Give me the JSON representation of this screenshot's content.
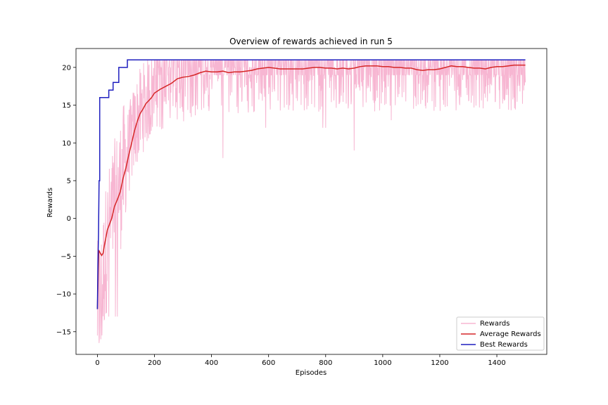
{
  "chart_data": {
    "type": "line",
    "title": "Overview of rewards achieved in run 5",
    "xlabel": "Episodes",
    "ylabel": "Rewards",
    "xlim": [
      -75,
      1575
    ],
    "ylim": [
      -18,
      22.5
    ],
    "xticks": [
      0,
      200,
      400,
      600,
      800,
      1000,
      1200,
      1400
    ],
    "yticks": [
      -15,
      -10,
      -5,
      0,
      5,
      10,
      15,
      20
    ],
    "grid": false,
    "legend_position": "lower-right",
    "colors": {
      "rewards": "#f7b6d2",
      "average": "#d62728",
      "best": "#1f1fbf"
    },
    "series": [
      {
        "name": "Rewards",
        "style": "noisy",
        "x_range": [
          0,
          1500
        ],
        "baseline_points": [
          [
            0,
            -12
          ],
          [
            15,
            -10
          ],
          [
            30,
            -4
          ],
          [
            50,
            0
          ],
          [
            70,
            3
          ],
          [
            90,
            6
          ],
          [
            110,
            9
          ],
          [
            130,
            12
          ],
          [
            150,
            14
          ],
          [
            180,
            16
          ],
          [
            220,
            17.5
          ],
          [
            260,
            18.5
          ],
          [
            320,
            19
          ],
          [
            400,
            19.5
          ],
          [
            600,
            20
          ],
          [
            1500,
            20.3
          ]
        ],
        "ceiling": 21,
        "notable_dips": [
          [
            12,
            -16
          ],
          [
            40,
            -13
          ],
          [
            63,
            -13
          ],
          [
            70,
            -13
          ],
          [
            440,
            8
          ],
          [
            900,
            9
          ],
          [
            790,
            12
          ],
          [
            800,
            12
          ],
          [
            590,
            12
          ],
          [
            1030,
            13
          ],
          [
            1460,
            16
          ]
        ]
      },
      {
        "name": "Average Rewards",
        "points": [
          [
            0,
            -12
          ],
          [
            5,
            -4.2
          ],
          [
            10,
            -4.6
          ],
          [
            15,
            -4.9
          ],
          [
            20,
            -4.6
          ],
          [
            25,
            -3.5
          ],
          [
            35,
            -1.5
          ],
          [
            50,
            0
          ],
          [
            60,
            1.6
          ],
          [
            70,
            2.5
          ],
          [
            80,
            3.5
          ],
          [
            90,
            5.3
          ],
          [
            100,
            6.7
          ],
          [
            110,
            8.4
          ],
          [
            120,
            10.0
          ],
          [
            130,
            11.6
          ],
          [
            140,
            12.9
          ],
          [
            150,
            13.9
          ],
          [
            160,
            14.5
          ],
          [
            170,
            15.2
          ],
          [
            180,
            15.6
          ],
          [
            190,
            16.0
          ],
          [
            200,
            16.6
          ],
          [
            220,
            17.1
          ],
          [
            240,
            17.5
          ],
          [
            260,
            17.9
          ],
          [
            280,
            18.5
          ],
          [
            300,
            18.7
          ],
          [
            320,
            18.8
          ],
          [
            340,
            19.0
          ],
          [
            360,
            19.3
          ],
          [
            380,
            19.5
          ],
          [
            400,
            19.4
          ],
          [
            420,
            19.4
          ],
          [
            440,
            19.5
          ],
          [
            460,
            19.3
          ],
          [
            480,
            19.4
          ],
          [
            500,
            19.4
          ],
          [
            520,
            19.5
          ],
          [
            540,
            19.6
          ],
          [
            560,
            19.8
          ],
          [
            580,
            19.9
          ],
          [
            600,
            20.0
          ],
          [
            620,
            19.9
          ],
          [
            640,
            19.8
          ],
          [
            660,
            19.8
          ],
          [
            680,
            19.8
          ],
          [
            700,
            19.8
          ],
          [
            720,
            19.8
          ],
          [
            740,
            19.9
          ],
          [
            760,
            20.0
          ],
          [
            780,
            20.0
          ],
          [
            800,
            19.9
          ],
          [
            820,
            19.9
          ],
          [
            840,
            19.8
          ],
          [
            860,
            19.9
          ],
          [
            880,
            19.8
          ],
          [
            900,
            19.9
          ],
          [
            920,
            20.1
          ],
          [
            940,
            20.2
          ],
          [
            960,
            20.2
          ],
          [
            980,
            20.2
          ],
          [
            1000,
            20.1
          ],
          [
            1020,
            20.1
          ],
          [
            1040,
            20.0
          ],
          [
            1060,
            20.0
          ],
          [
            1080,
            19.9
          ],
          [
            1100,
            19.9
          ],
          [
            1120,
            19.7
          ],
          [
            1140,
            19.6
          ],
          [
            1160,
            19.7
          ],
          [
            1180,
            19.7
          ],
          [
            1200,
            19.8
          ],
          [
            1220,
            20.0
          ],
          [
            1240,
            20.2
          ],
          [
            1260,
            20.1
          ],
          [
            1280,
            20.1
          ],
          [
            1300,
            20.0
          ],
          [
            1320,
            19.9
          ],
          [
            1340,
            19.9
          ],
          [
            1360,
            19.8
          ],
          [
            1380,
            20.0
          ],
          [
            1400,
            20.1
          ],
          [
            1420,
            20.1
          ],
          [
            1440,
            20.2
          ],
          [
            1460,
            20.3
          ],
          [
            1480,
            20.3
          ],
          [
            1500,
            20.3
          ]
        ]
      },
      {
        "name": "Best Rewards",
        "points": [
          [
            0,
            -12
          ],
          [
            2,
            -6
          ],
          [
            4,
            -2
          ],
          [
            6,
            5
          ],
          [
            8,
            5
          ],
          [
            8,
            16
          ],
          [
            40,
            16
          ],
          [
            40,
            17
          ],
          [
            55,
            17
          ],
          [
            55,
            18
          ],
          [
            75,
            18
          ],
          [
            75,
            20
          ],
          [
            105,
            20
          ],
          [
            105,
            21
          ],
          [
            1500,
            21
          ]
        ]
      }
    ]
  }
}
